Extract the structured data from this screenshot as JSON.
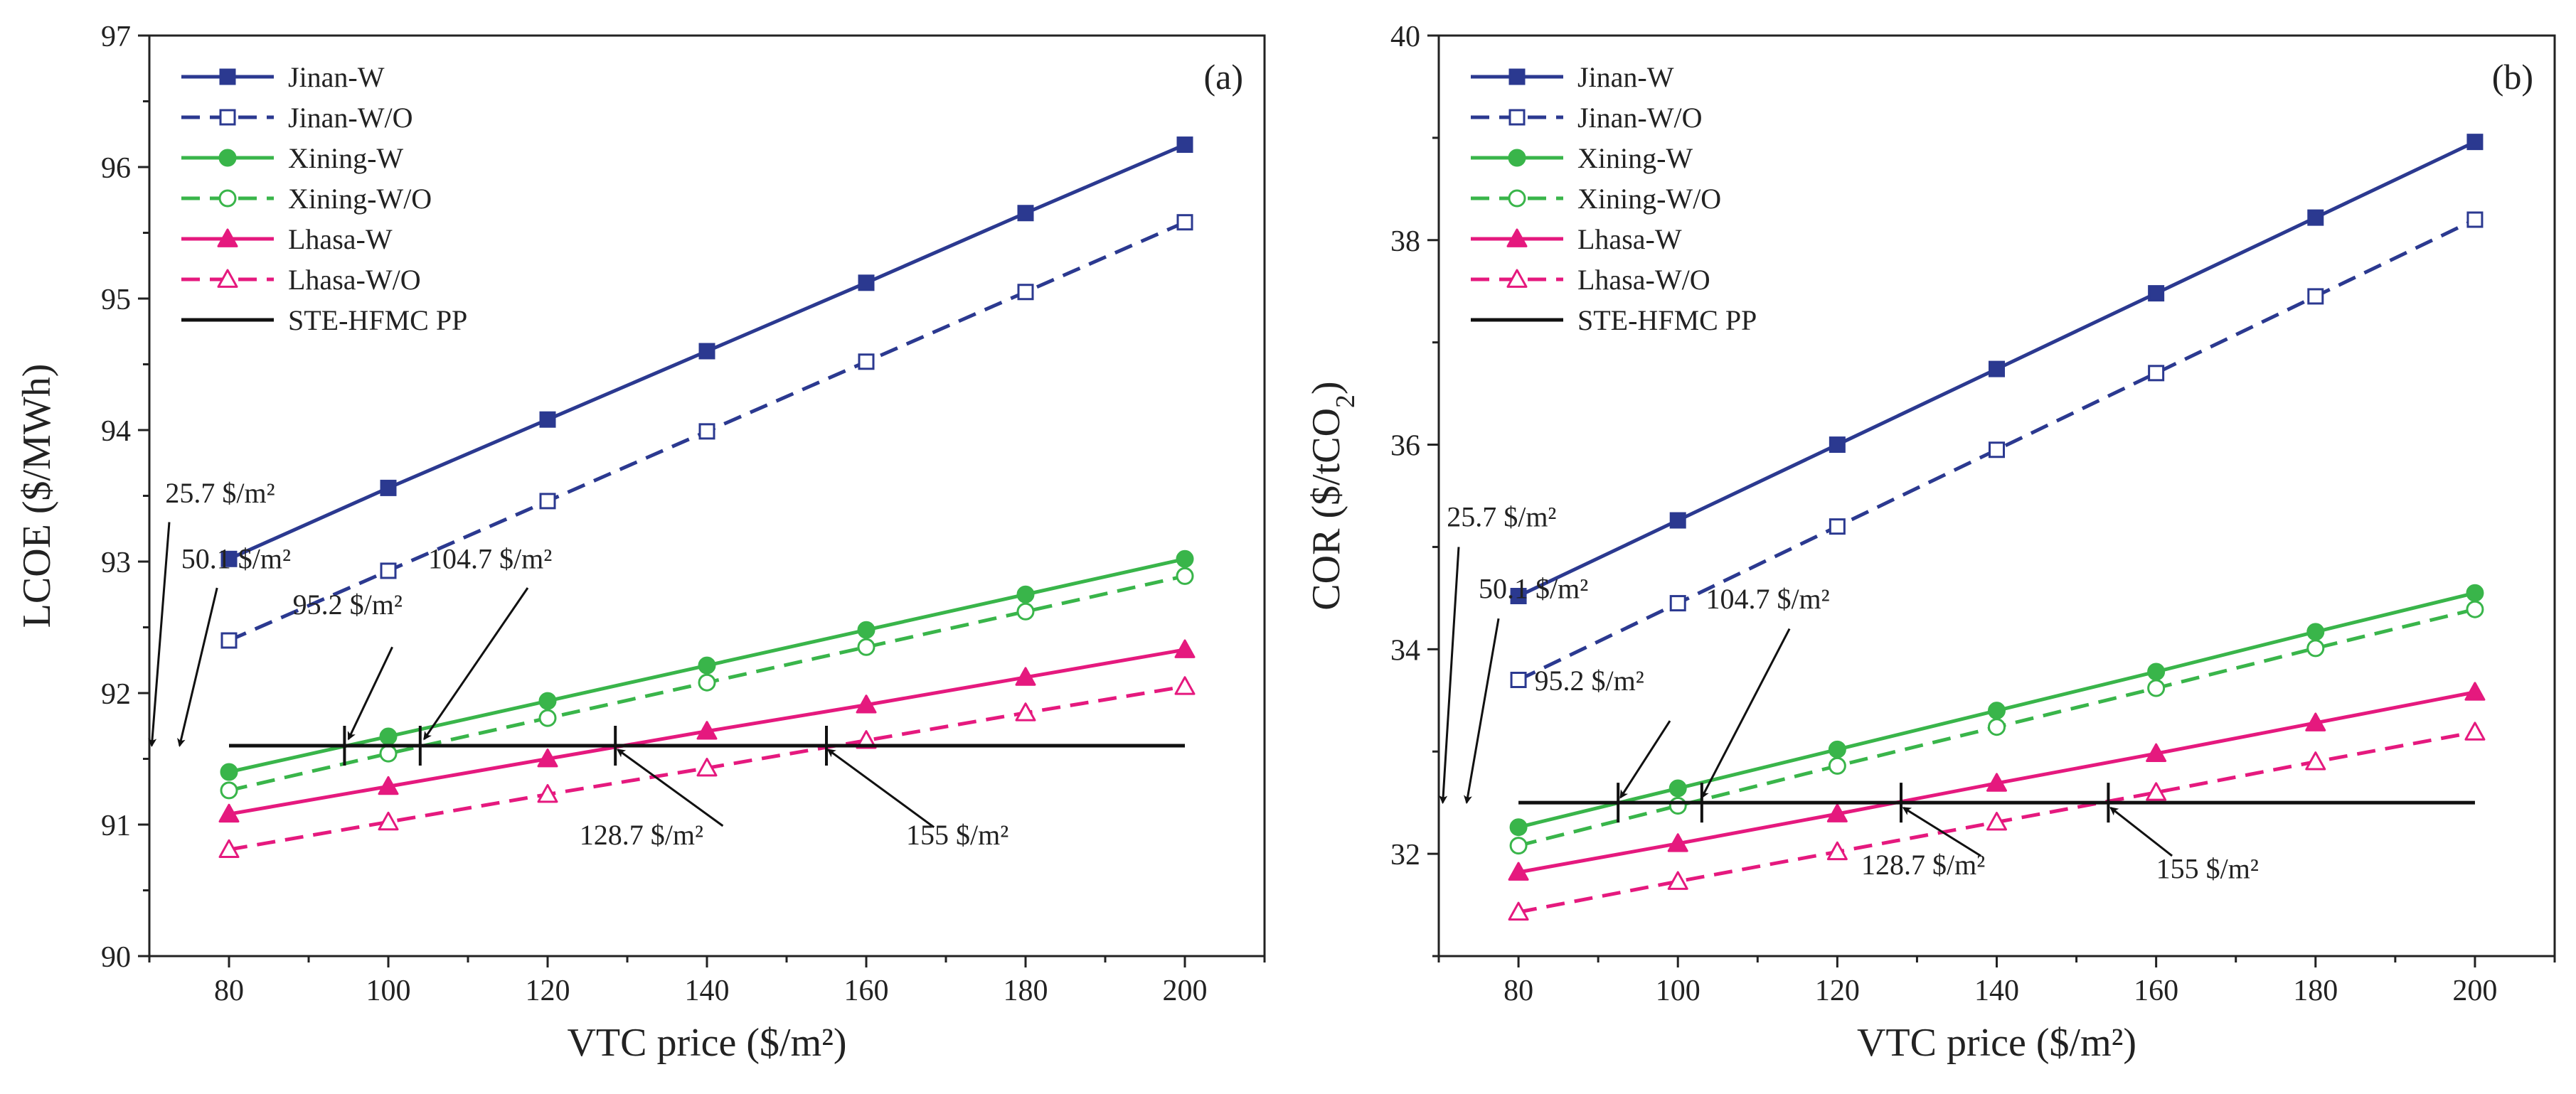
{
  "chart_data": [
    {
      "type": "line",
      "panel_label": "(a)",
      "xlabel": "VTC price ($/m²)",
      "ylabel": "LCOE ($/MWh)",
      "ylabel_sub": "",
      "ylabel_suffix": "",
      "xlim": [
        70,
        210
      ],
      "ylim": [
        90,
        97
      ],
      "xticks": [
        80,
        100,
        120,
        140,
        160,
        180,
        200
      ],
      "yticks": [
        90,
        91,
        92,
        93,
        94,
        95,
        96,
        97
      ],
      "x": [
        80,
        100,
        120,
        140,
        160,
        180,
        200
      ],
      "legend_position": "top-left",
      "series": [
        {
          "name": "Jinan-W",
          "color": "#2b3990",
          "dash": "solid",
          "marker": "square",
          "filled": true,
          "values": [
            93.02,
            93.56,
            94.08,
            94.6,
            95.12,
            95.65,
            96.17
          ]
        },
        {
          "name": "Jinan-W/O",
          "color": "#2b3990",
          "dash": "dash",
          "marker": "square",
          "filled": false,
          "values": [
            92.4,
            92.93,
            93.46,
            93.99,
            94.52,
            95.05,
            95.58
          ]
        },
        {
          "name": "Xining-W",
          "color": "#39b54a",
          "dash": "solid",
          "marker": "circle",
          "filled": true,
          "values": [
            91.4,
            91.67,
            91.94,
            92.21,
            92.48,
            92.75,
            93.02
          ]
        },
        {
          "name": "Xining-W/O",
          "color": "#39b54a",
          "dash": "dash",
          "marker": "circle",
          "filled": false,
          "values": [
            91.26,
            91.54,
            91.81,
            92.08,
            92.35,
            92.62,
            92.89
          ]
        },
        {
          "name": "Lhasa-W",
          "color": "#e5197e",
          "dash": "solid",
          "marker": "triangle",
          "filled": true,
          "values": [
            91.08,
            91.29,
            91.5,
            91.71,
            91.91,
            92.12,
            92.33
          ]
        },
        {
          "name": "Lhasa-W/O",
          "color": "#e5197e",
          "dash": "dash",
          "marker": "triangle",
          "filled": false,
          "values": [
            90.81,
            91.02,
            91.23,
            91.43,
            91.64,
            91.85,
            92.05
          ]
        },
        {
          "name": "STE-HFMC PP",
          "color": "#111111",
          "dash": "solid",
          "marker": "none",
          "filled": false,
          "values": [
            91.6,
            91.6,
            91.6,
            91.6,
            91.6,
            91.6,
            91.6
          ]
        }
      ],
      "reference_y": 91.6,
      "intersection_ticks": [
        94.5,
        104.0,
        128.5,
        155.0
      ],
      "annotations": [
        {
          "text": "25.7 $/m²",
          "text_x": 72,
          "text_y": 93.45,
          "anchor": "start",
          "arrow_from": [
            72.5,
            93.3
          ],
          "arrow_to": [
            70.3,
            91.6
          ]
        },
        {
          "text": "50.1 $/m²",
          "text_x": 74,
          "text_y": 92.95,
          "anchor": "start",
          "arrow_from": [
            78.5,
            92.8
          ],
          "arrow_to": [
            73.8,
            91.6
          ]
        },
        {
          "text": "95.2 $/m²",
          "text_x": 88,
          "text_y": 92.6,
          "anchor": "start",
          "arrow_from": [
            100.5,
            92.35
          ],
          "arrow_to": [
            95,
            91.65
          ]
        },
        {
          "text": "104.7 $/m²",
          "text_x": 105,
          "text_y": 92.95,
          "anchor": "start",
          "arrow_from": [
            117.5,
            92.8
          ],
          "arrow_to": [
            104.5,
            91.65
          ]
        },
        {
          "text": "128.7 $/m²",
          "text_x": 124,
          "text_y": 90.85,
          "anchor": "start",
          "arrow_from": [
            142,
            90.99
          ],
          "arrow_to": [
            128.8,
            91.57
          ]
        },
        {
          "text": "155 $/m²",
          "text_x": 165,
          "text_y": 90.85,
          "anchor": "start",
          "arrow_from": [
            168.5,
            90.98
          ],
          "arrow_to": [
            155.2,
            91.57
          ]
        }
      ]
    },
    {
      "type": "line",
      "panel_label": "(b)",
      "xlabel": "VTC price ($/m²)",
      "ylabel": "COR ($/tCO",
      "ylabel_sub": "2",
      "ylabel_suffix": ")",
      "xlim": [
        70,
        210
      ],
      "ylim": [
        31,
        40
      ],
      "xticks": [
        80,
        100,
        120,
        140,
        160,
        180,
        200
      ],
      "yticks": [
        32,
        34,
        36,
        38,
        40
      ],
      "x": [
        80,
        100,
        120,
        140,
        160,
        180,
        200
      ],
      "legend_position": "top-left",
      "series": [
        {
          "name": "Jinan-W",
          "color": "#2b3990",
          "dash": "solid",
          "marker": "square",
          "filled": true,
          "values": [
            34.52,
            35.26,
            36.0,
            36.74,
            37.48,
            38.22,
            38.96
          ]
        },
        {
          "name": "Jinan-W/O",
          "color": "#2b3990",
          "dash": "dash",
          "marker": "square",
          "filled": false,
          "values": [
            33.7,
            34.45,
            35.2,
            35.95,
            36.7,
            37.45,
            38.2
          ]
        },
        {
          "name": "Xining-W",
          "color": "#39b54a",
          "dash": "solid",
          "marker": "circle",
          "filled": true,
          "values": [
            32.26,
            32.64,
            33.02,
            33.4,
            33.78,
            34.17,
            34.55
          ]
        },
        {
          "name": "Xining-W/O",
          "color": "#39b54a",
          "dash": "dash",
          "marker": "circle",
          "filled": false,
          "values": [
            32.08,
            32.47,
            32.86,
            33.24,
            33.62,
            34.01,
            34.39
          ]
        },
        {
          "name": "Lhasa-W",
          "color": "#e5197e",
          "dash": "solid",
          "marker": "triangle",
          "filled": true,
          "values": [
            31.82,
            32.1,
            32.39,
            32.69,
            32.98,
            33.28,
            33.58
          ]
        },
        {
          "name": "Lhasa-W/O",
          "color": "#e5197e",
          "dash": "dash",
          "marker": "triangle",
          "filled": false,
          "values": [
            31.43,
            31.73,
            32.02,
            32.31,
            32.6,
            32.9,
            33.19
          ]
        },
        {
          "name": "STE-HFMC PP",
          "color": "#111111",
          "dash": "solid",
          "marker": "none",
          "filled": false,
          "values": [
            32.5,
            32.5,
            32.5,
            32.5,
            32.5,
            32.5,
            32.5
          ]
        }
      ],
      "reference_y": 32.5,
      "intersection_ticks": [
        92.5,
        103.0,
        128.0,
        154.0
      ],
      "annotations": [
        {
          "text": "25.7 $/m²",
          "text_x": 71,
          "text_y": 35.2,
          "anchor": "start",
          "arrow_from": [
            72.5,
            35.0
          ],
          "arrow_to": [
            70.5,
            32.5
          ]
        },
        {
          "text": "50.1 $/m²",
          "text_x": 75,
          "text_y": 34.5,
          "anchor": "start",
          "arrow_from": [
            77.5,
            34.3
          ],
          "arrow_to": [
            73.5,
            32.5
          ]
        },
        {
          "text": "95.2 $/m²",
          "text_x": 82,
          "text_y": 33.6,
          "anchor": "start",
          "arrow_from": [
            99,
            33.3
          ],
          "arrow_to": [
            92.8,
            32.55
          ]
        },
        {
          "text": "104.7 $/m²",
          "text_x": 103.5,
          "text_y": 34.4,
          "anchor": "start",
          "arrow_from": [
            114,
            34.2
          ],
          "arrow_to": [
            103,
            32.55
          ]
        },
        {
          "text": "128.7 $/m²",
          "text_x": 123,
          "text_y": 31.8,
          "anchor": "start",
          "arrow_from": [
            138,
            31.98
          ],
          "arrow_to": [
            128.3,
            32.45
          ]
        },
        {
          "text": "155 $/m²",
          "text_x": 160,
          "text_y": 31.76,
          "anchor": "start",
          "arrow_from": [
            162,
            31.98
          ],
          "arrow_to": [
            154.3,
            32.45
          ]
        }
      ]
    }
  ]
}
